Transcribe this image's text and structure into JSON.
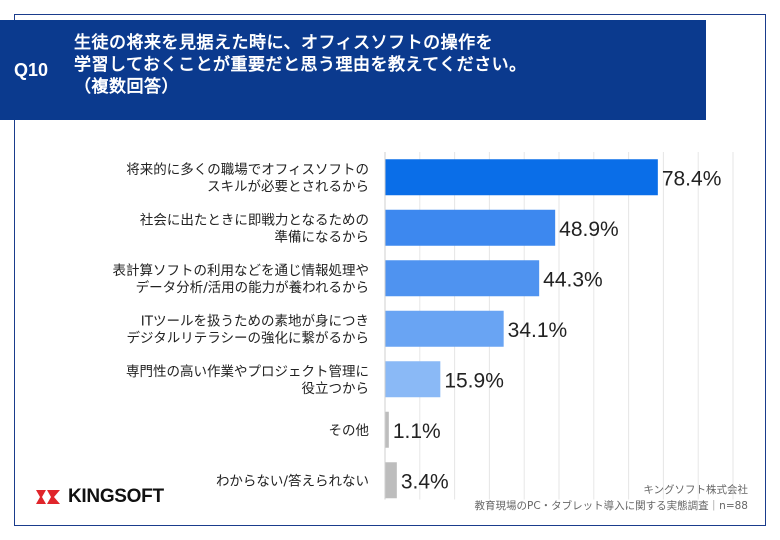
{
  "question_number": "Q10",
  "title_lines": [
    "生徒の将来を見据えた時に、オフィスソフトの操作を",
    "学習しておくことが重要だと思う理由を教えてください。",
    "（複数回答）"
  ],
  "chart_data": {
    "type": "bar",
    "orientation": "horizontal",
    "unit": "%",
    "categories": [
      [
        "将来的に多くの職場でオフィスソフトの",
        "スキルが必要とされるから"
      ],
      [
        "社会に出たときに即戦力となるための",
        "準備になるから"
      ],
      [
        "表計算ソフトの利用などを通じ情報処理や",
        "データ分析/活用の能力が養われるから"
      ],
      [
        "ITツールを扱うための素地が身につき",
        "デジタルリテラシーの強化に繋がるから"
      ],
      [
        "専門性の高い作業やプロジェクト管理に",
        "役立つから"
      ],
      [
        "その他"
      ],
      [
        "わからない/答えられない"
      ]
    ],
    "values": [
      78.4,
      48.9,
      44.3,
      34.1,
      15.9,
      1.1,
      3.4
    ],
    "value_labels": [
      "78.4%",
      "48.9%",
      "44.3%",
      "34.1%",
      "15.9%",
      "1.1%",
      "3.4%"
    ],
    "bar_colors": [
      "#0a6ee8",
      "#3d88ef",
      "#4f93f0",
      "#69a4f3",
      "#8ab9f6",
      "#bdbdbd",
      "#bdbdbd"
    ],
    "xlim": [
      0,
      100
    ],
    "grid": true
  },
  "footer": {
    "company": "キングソフト株式会社",
    "survey": "教育現場のPC・タブレット導入に関する実態調査｜n=88"
  },
  "logo": {
    "text": "KINGSOFT",
    "color": "#e0252b"
  }
}
